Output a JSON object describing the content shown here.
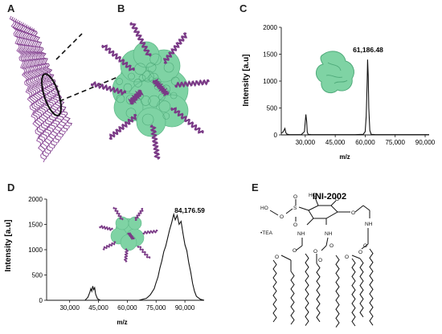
{
  "panels": {
    "a": "A",
    "b": "B",
    "c": "C",
    "d": "D",
    "e": "E"
  },
  "colors": {
    "helix": "#7a3a86",
    "surface": "#7fd3a4",
    "surface_dark": "#4faa7a",
    "trace": "#111111"
  },
  "chart_data": [
    {
      "panel": "C",
      "type": "line",
      "ylabel": "Intensity [a.u]",
      "xlabel": "m/z",
      "xlim": [
        18000,
        92000
      ],
      "ylim": [
        0,
        2000
      ],
      "x_ticks": [
        "30,000",
        "45,000",
        "60,000",
        "75,000",
        "90,000"
      ],
      "x_tick_values": [
        30000,
        45000,
        60000,
        75000,
        90000
      ],
      "y_ticks": [
        "0",
        "500",
        "1000",
        "1500",
        "2000"
      ],
      "y_tick_values": [
        0,
        500,
        1000,
        1500,
        2000
      ],
      "peak_label": "61,186.48",
      "series": [
        {
          "x": [
            18000,
            19000,
            19800,
            20300,
            20800,
            22000,
            28000,
            29600,
            30300,
            30700,
            31000,
            31400,
            33000,
            55000,
            59000,
            60000,
            60500,
            61000,
            61186,
            61500,
            61800,
            62300,
            63000,
            65000,
            92000
          ],
          "y": [
            30,
            60,
            120,
            40,
            15,
            5,
            5,
            60,
            380,
            250,
            60,
            10,
            5,
            5,
            10,
            60,
            350,
            1000,
            1400,
            1100,
            500,
            80,
            10,
            5,
            5
          ]
        }
      ]
    },
    {
      "panel": "D",
      "type": "line",
      "ylabel": "Intensity [a.u]",
      "xlabel": "m/z",
      "xlim": [
        18000,
        100000
      ],
      "ylim": [
        0,
        2000
      ],
      "x_ticks": [
        "30,000",
        "45,000",
        "60,000",
        "75,000",
        "90,000"
      ],
      "x_tick_values": [
        30000,
        45000,
        60000,
        75000,
        90000
      ],
      "y_ticks": [
        "0",
        "500",
        "1000",
        "1500",
        "2000"
      ],
      "y_tick_values": [
        0,
        500,
        1000,
        1500,
        2000
      ],
      "peak_label": "84,176.59",
      "series": [
        {
          "x": [
            18000,
            38000,
            39500,
            40500,
            41000,
            41500,
            42000,
            42500,
            43000,
            43500,
            44500,
            46000,
            66000,
            70000,
            72000,
            74000,
            75000,
            76000,
            77000,
            78000,
            79000,
            80000,
            81000,
            82000,
            83000,
            84176,
            85000,
            86000,
            87000,
            88000,
            89000,
            90000,
            91000,
            92000,
            93000,
            94000,
            95000,
            96000,
            98000,
            100000
          ],
          "y": [
            0,
            0,
            60,
            160,
            230,
            180,
            280,
            210,
            250,
            120,
            30,
            0,
            0,
            40,
            110,
            230,
            350,
            460,
            640,
            780,
            960,
            1070,
            1230,
            1390,
            1520,
            1700,
            1590,
            1680,
            1500,
            1560,
            1320,
            1100,
            980,
            740,
            560,
            330,
            180,
            80,
            20,
            0
          ]
        }
      ]
    }
  ],
  "structure": {
    "title": "INI-2002",
    "atoms": {
      "ho1": "HO",
      "o_ester_a": "O",
      "s": "S",
      "o_s_top": "O",
      "o_s_bot": "O",
      "ho2": "HO",
      "o_ring": "O",
      "o_link": "O",
      "nh1": "NH",
      "nh2": "NH",
      "nh3": "NH",
      "tea": "•TEA",
      "o_carb1": "O",
      "o_carb2": "O",
      "o_carb3": "O",
      "o_carb4": "O",
      "o_ester1": "O",
      "o_ester2": "O",
      "o_ester3": "O",
      "o_ester4": "O"
    }
  }
}
